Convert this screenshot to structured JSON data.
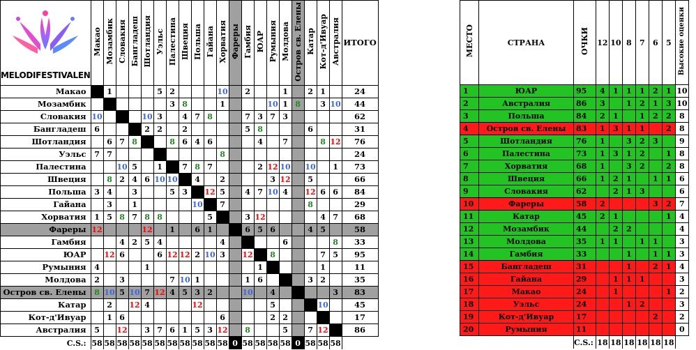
{
  "logo_text": "MELODIFESTIVALEN",
  "countries": [
    "Макао",
    "Мозамбик",
    "Словакия",
    "Бангладеш",
    "Шотландия",
    "Уэльс",
    "Палестина",
    "Швеция",
    "Польша",
    "Гайана",
    "Хорватия",
    "Фареры",
    "Гамбия",
    "ЮАР",
    "Румыния",
    "Молдова",
    "Остров св. Елены",
    "Катар",
    "Кот-д'Ивуар",
    "Австралия"
  ],
  "total_header": "ИТОГО",
  "matrix": [
    [
      "",
      "1",
      "",
      "",
      "",
      "5",
      "2",
      "",
      "",
      "",
      "10",
      "",
      "2",
      "",
      "",
      "1",
      "",
      "2",
      "1",
      ""
    ],
    [
      "",
      "",
      "",
      "",
      "",
      "",
      "3",
      "8",
      "",
      "",
      "1",
      "",
      "",
      "",
      "10",
      "1",
      "8",
      "",
      "3",
      "10"
    ],
    [
      "10",
      "",
      "",
      "",
      "10",
      "3",
      "",
      "4",
      "7",
      "8",
      "",
      "",
      "7",
      "3",
      "7",
      "3",
      "",
      "",
      "",
      ""
    ],
    [
      "6",
      "",
      "",
      "",
      "2",
      "2",
      "",
      "2",
      "",
      "",
      "",
      "",
      "5",
      "8",
      "",
      "",
      "",
      "6",
      "",
      ""
    ],
    [
      "",
      "6",
      "7",
      "8",
      "",
      "",
      "8",
      "6",
      "4",
      "6",
      "",
      "",
      "",
      "4",
      "",
      "7",
      "",
      "",
      "8",
      "12"
    ],
    [
      "7",
      "7",
      "",
      "",
      "",
      "",
      "",
      "",
      "",
      "",
      "8",
      "",
      "",
      "",
      "",
      "",
      "",
      "",
      "",
      ""
    ],
    [
      "",
      "",
      "10",
      "5",
      "",
      "1",
      "",
      "7",
      "8",
      "7",
      "",
      "",
      "",
      "2",
      "12",
      "10",
      "",
      "10",
      "",
      "1"
    ],
    [
      "",
      "8",
      "2",
      "4",
      "6",
      "10",
      "10",
      "",
      "4",
      "",
      "2",
      "",
      "",
      "",
      "3",
      "12",
      "",
      "5",
      "",
      ""
    ],
    [
      "3",
      "4",
      "",
      "3",
      "",
      "",
      "5",
      "3",
      "",
      "12",
      "5",
      "",
      "4",
      "7",
      "10",
      "4",
      "",
      "12",
      "6",
      "6"
    ],
    [
      "",
      "3",
      "",
      "1",
      "",
      "",
      "",
      "",
      "10",
      "",
      "7",
      "",
      "",
      "",
      "",
      "",
      "",
      "8",
      "",
      ""
    ],
    [
      "1",
      "5",
      "8",
      "7",
      "8",
      "8",
      "",
      "",
      "",
      "5",
      "",
      "",
      "3",
      "12",
      "",
      "",
      "",
      "",
      "4",
      "7"
    ],
    [
      "12",
      "",
      "",
      "",
      "12",
      "",
      "1",
      "",
      "6",
      "1",
      "",
      "",
      "6",
      "5",
      "6",
      "",
      "",
      "4",
      "5",
      ""
    ],
    [
      "",
      "",
      "4",
      "2",
      "5",
      "4",
      "",
      "",
      "",
      "",
      "4",
      "",
      "",
      "",
      "",
      "6",
      "",
      "",
      "",
      "8"
    ],
    [
      "",
      "12",
      "6",
      "",
      "",
      "6",
      "12",
      "12",
      "2",
      "10",
      "3",
      "",
      "12",
      "",
      "8",
      "",
      "",
      "",
      "7",
      "5"
    ],
    [
      "4",
      "",
      "",
      "",
      "1",
      "",
      "",
      "",
      "",
      "",
      "",
      "",
      "",
      "1",
      "",
      "",
      "",
      "",
      "1",
      ""
    ],
    [
      "2",
      "",
      "3",
      "",
      "",
      "",
      "7",
      "10",
      "1",
      "",
      "",
      "",
      "1",
      "6",
      "",
      "",
      "",
      "3",
      "2",
      ""
    ],
    [
      "8",
      "10",
      "5",
      "10",
      "7",
      "12",
      "4",
      "5",
      "3",
      "2",
      "",
      "",
      "10",
      "",
      "4",
      "",
      "",
      "",
      "",
      "3"
    ],
    [
      "",
      "2",
      "",
      "12",
      "4",
      "",
      "",
      "",
      "12",
      "",
      "",
      "",
      "",
      "",
      "5",
      "",
      "",
      "",
      "10",
      ""
    ],
    [
      "",
      "1",
      "6",
      "",
      "",
      "",
      "",
      "",
      "",
      "",
      "6",
      "",
      "",
      "",
      "2",
      "2",
      "",
      "",
      "",
      ""
    ],
    [
      "5",
      "",
      "12",
      "",
      "3",
      "7",
      "6",
      "1",
      "5",
      "3",
      "12",
      "",
      "8",
      "",
      "",
      "5",
      "",
      "7",
      "12",
      ""
    ]
  ],
  "totals": [
    "24",
    "44",
    "62",
    "31",
    "76",
    "24",
    "73",
    "66",
    "84",
    "29",
    "68",
    "58",
    "33",
    "95",
    "11",
    "35",
    "83",
    "45",
    "17",
    "86"
  ],
  "cs_label": "C.S.:",
  "cs_values": [
    "58",
    "58",
    "58",
    "58",
    "58",
    "58",
    "58",
    "58",
    "58",
    "58",
    "58",
    "0",
    "58",
    "58",
    "58",
    "58",
    "0",
    "58",
    "58",
    "58"
  ],
  "ranking_headers": {
    "place": "МЕСТО",
    "country": "СТРАНА",
    "points": "ОЧКИ",
    "p12": "12",
    "p10": "10",
    "p8": "8",
    "p7": "7",
    "p6": "6",
    "p5": "5",
    "high": "Высокие оценки"
  },
  "ranking": [
    {
      "place": "1",
      "country": "ЮАР",
      "points": "95",
      "p12": "4",
      "p10": "1",
      "p8": "1",
      "p7": "1",
      "p6": "2",
      "p5": "1",
      "high": "10",
      "color": "green"
    },
    {
      "place": "2",
      "country": "Австралия",
      "points": "86",
      "p12": "3",
      "p10": "",
      "p8": "1",
      "p7": "2",
      "p6": "1",
      "p5": "3",
      "high": "10",
      "color": "green"
    },
    {
      "place": "3",
      "country": "Польша",
      "points": "84",
      "p12": "2",
      "p10": "1",
      "p8": "",
      "p7": "1",
      "p6": "2",
      "p5": "2",
      "high": "8",
      "color": "green"
    },
    {
      "place": "4",
      "country": "Остров св. Елены",
      "points": "83",
      "p12": "1",
      "p10": "3",
      "p8": "1",
      "p7": "1",
      "p6": "",
      "p5": "2",
      "high": "8",
      "color": "red"
    },
    {
      "place": "5",
      "country": "Шотландия",
      "points": "76",
      "p12": "1",
      "p10": "",
      "p8": "3",
      "p7": "2",
      "p6": "3",
      "p5": "",
      "high": "9",
      "color": "green"
    },
    {
      "place": "6",
      "country": "Палестина",
      "points": "73",
      "p12": "1",
      "p10": "3",
      "p8": "1",
      "p7": "2",
      "p6": "",
      "p5": "1",
      "high": "8",
      "color": "green"
    },
    {
      "place": "7",
      "country": "Хорватия",
      "points": "68",
      "p12": "1",
      "p10": "",
      "p8": "3",
      "p7": "2",
      "p6": "",
      "p5": "2",
      "high": "8",
      "color": "green"
    },
    {
      "place": "8",
      "country": "Швеция",
      "points": "66",
      "p12": "1",
      "p10": "2",
      "p8": "1",
      "p7": "",
      "p6": "1",
      "p5": "1",
      "high": "6",
      "color": "green"
    },
    {
      "place": "9",
      "country": "Словакия",
      "points": "62",
      "p12": "",
      "p10": "2",
      "p8": "1",
      "p7": "3",
      "p6": "",
      "p5": "",
      "high": "6",
      "color": "green"
    },
    {
      "place": "10",
      "country": "Фареры",
      "points": "58",
      "p12": "2",
      "p10": "",
      "p8": "",
      "p7": "",
      "p6": "3",
      "p5": "2",
      "high": "7",
      "color": "red"
    },
    {
      "place": "11",
      "country": "Катар",
      "points": "45",
      "p12": "2",
      "p10": "1",
      "p8": "",
      "p7": "",
      "p6": "",
      "p5": "1",
      "high": "4",
      "color": "green"
    },
    {
      "place": "12",
      "country": "Мозамбик",
      "points": "44",
      "p12": "",
      "p10": "2",
      "p8": "2",
      "p7": "",
      "p6": "",
      "p5": "",
      "high": "4",
      "color": "green"
    },
    {
      "place": "13",
      "country": "Молдова",
      "points": "35",
      "p12": "1",
      "p10": "1",
      "p8": "",
      "p7": "1",
      "p6": "1",
      "p5": "",
      "high": "3",
      "color": "green"
    },
    {
      "place": "14",
      "country": "Гамбия",
      "points": "33",
      "p12": "",
      "p10": "",
      "p8": "1",
      "p7": "",
      "p6": "1",
      "p5": "1",
      "high": "3",
      "color": "green"
    },
    {
      "place": "15",
      "country": "Бангладеш",
      "points": "31",
      "p12": "",
      "p10": "",
      "p8": "1",
      "p7": "",
      "p6": "2",
      "p5": "1",
      "high": "4",
      "color": "red"
    },
    {
      "place": "16",
      "country": "Гайана",
      "points": "29",
      "p12": "",
      "p10": "1",
      "p8": "1",
      "p7": "1",
      "p6": "",
      "p5": "",
      "high": "3",
      "color": "red"
    },
    {
      "place": "17",
      "country": "Макао",
      "points": "24",
      "p12": "",
      "p10": "1",
      "p8": "",
      "p7": "",
      "p6": "",
      "p5": "1",
      "high": "2",
      "color": "red"
    },
    {
      "place": "18",
      "country": "Уэльс",
      "points": "24",
      "p12": "",
      "p10": "",
      "p8": "1",
      "p7": "2",
      "p6": "",
      "p5": "",
      "high": "3",
      "color": "red"
    },
    {
      "place": "19",
      "country": "Кот-д'Ивуар",
      "points": "17",
      "p12": "",
      "p10": "",
      "p8": "",
      "p7": "",
      "p6": "2",
      "p5": "",
      "high": "2",
      "color": "red"
    },
    {
      "place": "20",
      "country": "Румыния",
      "points": "11",
      "p12": "",
      "p10": "",
      "p8": "",
      "p7": "",
      "p6": "",
      "p5": "",
      "high": "0",
      "color": "red"
    }
  ],
  "ranking_cs": [
    "18",
    "18",
    "18",
    "18",
    "18",
    "18"
  ],
  "colors": {
    "twelve": "#ff0000",
    "ten": "#3a66e0",
    "eight": "#1e8a1e",
    "green_row": "#22c322",
    "red_row": "#ff1a1a",
    "grey": "#a0a0a0"
  },
  "zero_columns": [
    11,
    16
  ]
}
